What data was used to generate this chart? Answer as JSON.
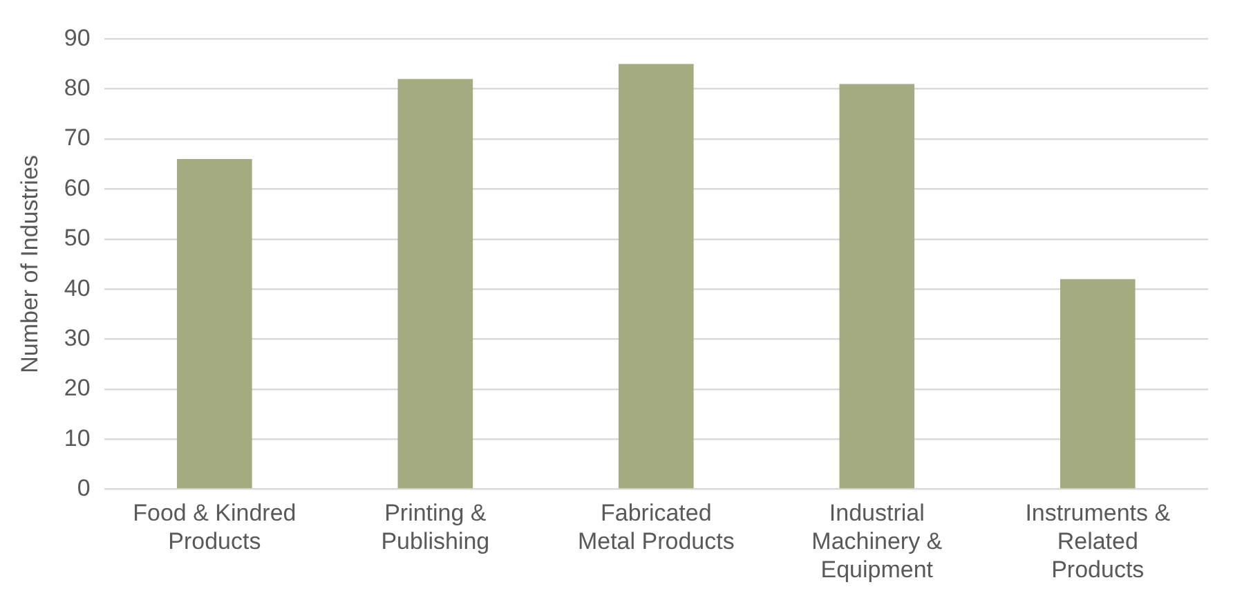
{
  "chart_data": {
    "type": "bar",
    "ylabel": "Number of Industries",
    "categories": [
      "Food & Kindred Products",
      "Printing & Publishing",
      "Fabricated Metal Products",
      "Industrial Machinery & Equipment",
      "Instruments & Related Products"
    ],
    "values": [
      66,
      82,
      85,
      81,
      42
    ],
    "color": "#a5ab80",
    "ylim": [
      0,
      90
    ],
    "yticks": [
      0,
      10,
      20,
      30,
      40,
      50,
      60,
      70,
      80,
      90
    ],
    "grid": "y",
    "legend": false
  }
}
